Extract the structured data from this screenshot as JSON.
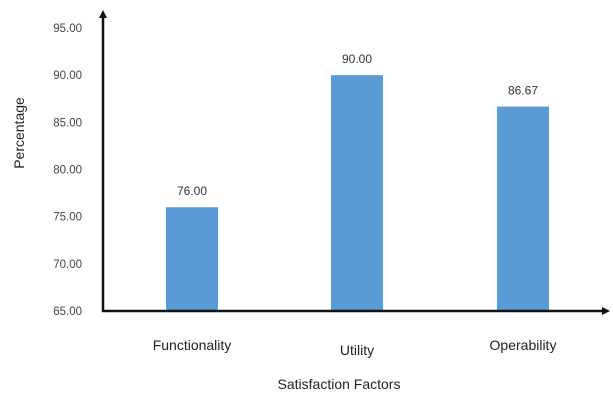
{
  "chart_data": {
    "type": "bar",
    "categories": [
      "Functionality",
      "Utility",
      "Operability"
    ],
    "values": [
      76.0,
      90.0,
      86.67
    ],
    "value_labels": [
      "76.00",
      "90.00",
      "86.67"
    ],
    "title": "",
    "xlabel": "Satisfaction Factors",
    "ylabel": "Percentage",
    "ylim": [
      65,
      95
    ],
    "yticks": [
      65,
      70,
      75,
      80,
      85,
      90,
      95
    ],
    "ytick_labels": [
      "65.00",
      "70.00",
      "75.00",
      "80.00",
      "85.00",
      "90.00",
      "95.00"
    ],
    "grid": false,
    "legend": "none",
    "bar_color": "#5B9BD5",
    "axis_color": "#111111"
  }
}
